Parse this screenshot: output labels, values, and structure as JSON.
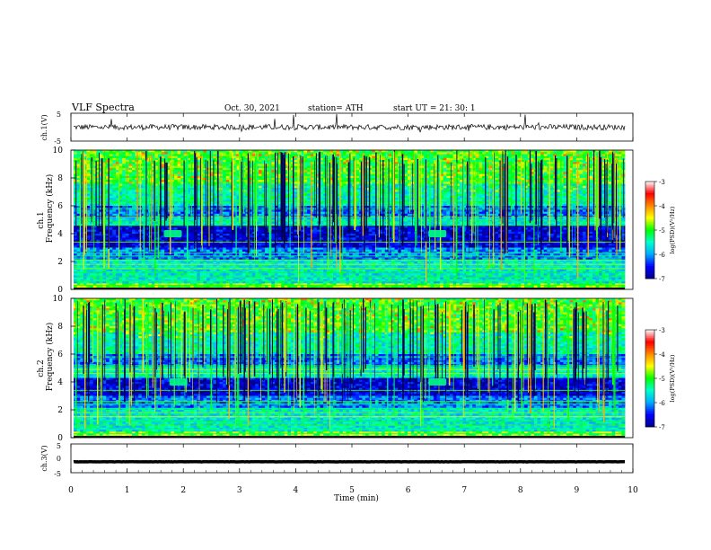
{
  "header": {
    "title": "VLF  Spectra",
    "date": "Oct. 30, 2021",
    "station": "station= ATH",
    "start": "start  UT  =   21: 30: 1"
  },
  "chart_data": [
    {
      "type": "line",
      "panel": "ch1-waveform",
      "ylabel": "ch.1(V)",
      "ylim": [
        -5,
        5
      ],
      "ytick_labels": [
        "5",
        "-5"
      ],
      "xlim": [
        0,
        10
      ],
      "baseline": 0,
      "noise_amplitude": 1.0
    },
    {
      "type": "heatmap",
      "panel": "ch1-spectrogram",
      "ylabel": "ch.1\nFrequency  (kHz)",
      "ylim": [
        0,
        10
      ],
      "ytick_labels": [
        "0",
        "2",
        "4",
        "6",
        "8",
        "10"
      ],
      "xlim": [
        0,
        10
      ],
      "colorbar": {
        "label": "log(PSD)(V²/Hz)",
        "range": [
          -7,
          -3
        ],
        "tick_labels": [
          "-3",
          "-4",
          "-5",
          "-6",
          "-7"
        ],
        "colors": [
          "#000088",
          "#0000ff",
          "#00aaff",
          "#00ffcc",
          "#00ff00",
          "#ffff00",
          "#ff8800",
          "#ff0000",
          "#ffffff"
        ]
      },
      "noise_burst_times_min": [
        1.8,
        6.6
      ],
      "noise_burst_freq_khz": 4.0
    },
    {
      "type": "heatmap",
      "panel": "ch2-spectrogram",
      "ylabel": "ch.2\nFrequency  (kHz)",
      "ylim": [
        0,
        10
      ],
      "ytick_labels": [
        "0",
        "2",
        "4",
        "6",
        "8",
        "10"
      ],
      "xlim": [
        0,
        10
      ],
      "colorbar": {
        "label": "log(PSD)(V²/Hz)",
        "range": [
          -7,
          -3
        ],
        "tick_labels": [
          "-3",
          "-4",
          "-5",
          "-6",
          "-7"
        ],
        "colors": [
          "#000088",
          "#0000ff",
          "#00aaff",
          "#00ffcc",
          "#00ff00",
          "#ffff00",
          "#ff8800",
          "#ff0000",
          "#ffffff"
        ]
      },
      "noise_burst_times_min": [
        1.9,
        6.6
      ],
      "noise_burst_freq_khz": 4.0
    },
    {
      "type": "line",
      "panel": "ch3-waveform",
      "ylabel": "ch.3(V)",
      "ylim": [
        -5,
        5
      ],
      "ytick_labels": [
        "5",
        "0",
        "-5"
      ],
      "xlim": [
        0,
        10
      ],
      "baseline": -1.2,
      "noise_amplitude": 0.05
    }
  ],
  "x_axis": {
    "label": "Time  (min)",
    "tick_labels": [
      "0",
      "1",
      "2",
      "3",
      "4",
      "5",
      "6",
      "7",
      "8",
      "9",
      "10"
    ]
  }
}
